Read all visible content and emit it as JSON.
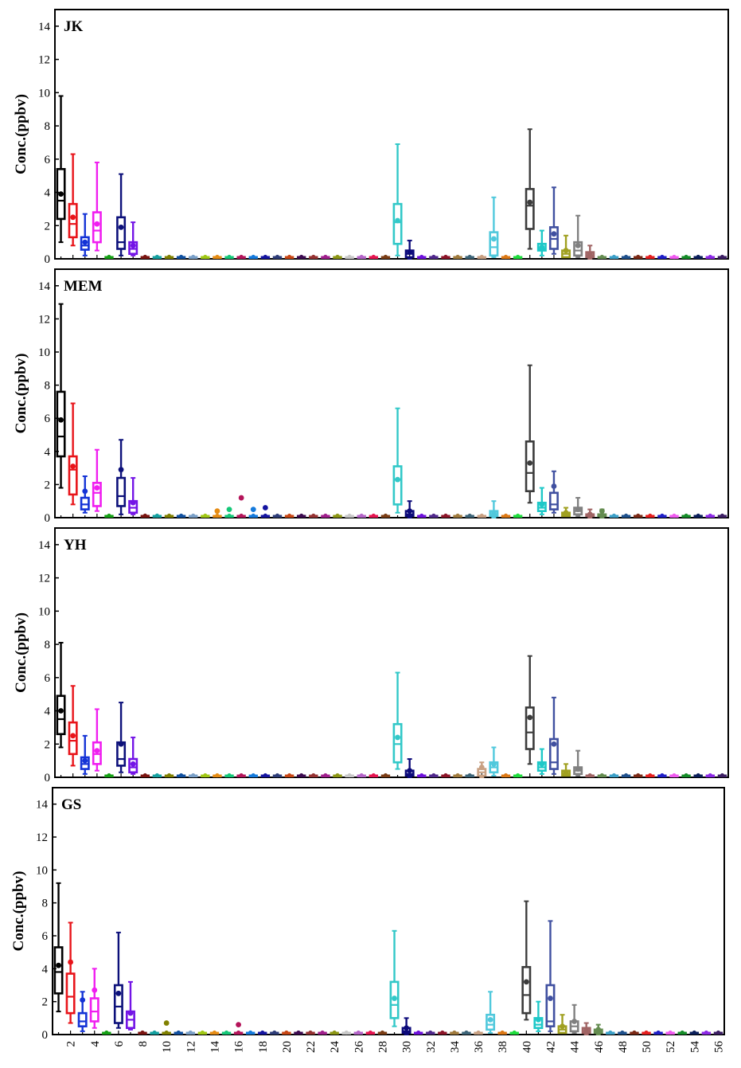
{
  "chart_data": {
    "type": "box",
    "ylabel": "Conc.(ppbv)",
    "ylim": [
      0,
      15
    ],
    "yticks": [
      0,
      2,
      4,
      6,
      8,
      10,
      12,
      14
    ],
    "xrange": [
      0.5,
      56.5
    ],
    "xticks": [
      "2",
      "4",
      "6",
      "8",
      "10",
      "12",
      "14",
      "16",
      "18",
      "20",
      "22",
      "24",
      "26",
      "28",
      "30",
      "32",
      "34",
      "36",
      "38",
      "40",
      "42",
      "44",
      "46",
      "48",
      "50",
      "52",
      "54",
      "56"
    ],
    "colors": [
      "#000000",
      "#e8141a",
      "#1433d6",
      "#f01ef0",
      "#14a014",
      "#0c107a",
      "#7314e6",
      "#7a1410",
      "#14a0a0",
      "#808000",
      "#1050a0",
      "#7aa0c8",
      "#a0c814",
      "#e68c14",
      "#14c878",
      "#b4145a",
      "#147adc",
      "#1414a0",
      "#2d3c78",
      "#c84614",
      "#3c0a50",
      "#963232",
      "#a01e8c",
      "#8c9614",
      "#c8c8c8",
      "#b464c8",
      "#e61450",
      "#7a3c14",
      "#32c8c8",
      "#0c0a7a",
      "#6e10dc",
      "#50288c",
      "#8c1428",
      "#a07a3c",
      "#3c6478",
      "#c8a082",
      "#50c8dc",
      "#dc7814",
      "#1edc3c",
      "#3c3c3c",
      "#1ec8c8",
      "#4050a0",
      "#a0a020",
      "#808080",
      "#a06464",
      "#648c50",
      "#3ca0c8",
      "#1e508c",
      "#7a2814",
      "#e61e1e",
      "#1e1ec8",
      "#f05af0",
      "#148c28",
      "#0a1e5a",
      "#8c28e6",
      "#3c1e64",
      "#a09614"
    ],
    "panels": [
      {
        "title": "JK",
        "boxes": [
          {
            "x": 1,
            "whisker_low": 1.0,
            "q1": 2.4,
            "median": 3.5,
            "q3": 5.4,
            "whisker_high": 9.8,
            "mean": 3.9
          },
          {
            "x": 2,
            "whisker_low": 0.8,
            "q1": 1.3,
            "median": 2.1,
            "q3": 3.3,
            "whisker_high": 6.3,
            "mean": 2.5
          },
          {
            "x": 3,
            "whisker_low": 0.2,
            "q1": 0.55,
            "median": 0.8,
            "q3": 1.3,
            "whisker_high": 2.7,
            "mean": 1.0
          },
          {
            "x": 4,
            "whisker_low": 0.5,
            "q1": 1.0,
            "median": 1.7,
            "q3": 2.8,
            "whisker_high": 5.8,
            "mean": 2.1
          },
          {
            "x": 6,
            "whisker_low": 0.2,
            "q1": 0.6,
            "median": 1.0,
            "q3": 2.5,
            "whisker_high": 5.1,
            "mean": 1.9
          },
          {
            "x": 7,
            "whisker_low": 0.2,
            "q1": 0.3,
            "median": 0.6,
            "q3": 1.0,
            "whisker_high": 2.2,
            "mean": 0.8
          },
          {
            "x": 29,
            "whisker_low": 0.2,
            "q1": 0.9,
            "median": 2.2,
            "q3": 3.3,
            "whisker_high": 6.9,
            "mean": 2.3
          },
          {
            "x": 30,
            "whisker_low": 0.0,
            "q1": 0.1,
            "median": 0.3,
            "q3": 0.5,
            "whisker_high": 1.1,
            "mean": 0.4
          },
          {
            "x": 37,
            "whisker_low": 0.1,
            "q1": 0.2,
            "median": 0.7,
            "q3": 1.6,
            "whisker_high": 3.7,
            "mean": 1.2
          },
          {
            "x": 40,
            "whisker_low": 0.6,
            "q1": 1.8,
            "median": 3.2,
            "q3": 4.2,
            "whisker_high": 7.8,
            "mean": 3.4
          },
          {
            "x": 41,
            "whisker_low": 0.2,
            "q1": 0.5,
            "median": 0.6,
            "q3": 0.9,
            "whisker_high": 1.7,
            "mean": 0.7
          },
          {
            "x": 42,
            "whisker_low": 0.3,
            "q1": 0.6,
            "median": 1.2,
            "q3": 1.9,
            "whisker_high": 4.3,
            "mean": 1.5
          },
          {
            "x": 43,
            "whisker_low": 0.1,
            "q1": 0.1,
            "median": 0.3,
            "q3": 0.5,
            "whisker_high": 1.4,
            "mean": 0.5
          },
          {
            "x": 44,
            "whisker_low": 0.1,
            "q1": 0.2,
            "median": 0.5,
            "q3": 1.0,
            "whisker_high": 2.6,
            "mean": 0.8
          },
          {
            "x": 45,
            "whisker_low": 0.0,
            "q1": 0.1,
            "median": 0.2,
            "q3": 0.4,
            "whisker_high": 0.8,
            "mean": 0.3
          }
        ]
      },
      {
        "title": "MEM",
        "boxes": [
          {
            "x": 1,
            "whisker_low": 1.8,
            "q1": 3.7,
            "median": 4.9,
            "q3": 7.6,
            "whisker_high": 12.9,
            "mean": 5.9
          },
          {
            "x": 2,
            "whisker_low": 0.8,
            "q1": 1.4,
            "median": 2.9,
            "q3": 3.7,
            "whisker_high": 6.9,
            "mean": 3.1
          },
          {
            "x": 3,
            "whisker_low": 0.3,
            "q1": 0.5,
            "median": 0.8,
            "q3": 1.2,
            "whisker_high": 2.5,
            "mean": 1.6
          },
          {
            "x": 4,
            "whisker_low": 0.4,
            "q1": 0.7,
            "median": 1.5,
            "q3": 2.1,
            "whisker_high": 4.1,
            "mean": 1.8
          },
          {
            "x": 6,
            "whisker_low": 0.2,
            "q1": 0.7,
            "median": 1.3,
            "q3": 2.4,
            "whisker_high": 4.7,
            "mean": 2.9
          },
          {
            "x": 7,
            "whisker_low": 0.2,
            "q1": 0.3,
            "median": 0.6,
            "q3": 1.0,
            "whisker_high": 2.4,
            "mean": 0.9
          },
          {
            "x": 29,
            "whisker_low": 0.3,
            "q1": 0.8,
            "median": 2.3,
            "q3": 3.1,
            "whisker_high": 6.6,
            "mean": 2.3
          },
          {
            "x": 30,
            "whisker_low": 0.0,
            "q1": 0.1,
            "median": 0.2,
            "q3": 0.4,
            "whisker_high": 1.0,
            "mean": 0.4
          },
          {
            "x": 37,
            "whisker_low": 0.0,
            "q1": 0.1,
            "median": 0.2,
            "q3": 0.4,
            "whisker_high": 1.0,
            "mean": 0.3
          },
          {
            "x": 40,
            "whisker_low": 0.9,
            "q1": 1.6,
            "median": 2.7,
            "q3": 4.6,
            "whisker_high": 9.2,
            "mean": 3.3
          },
          {
            "x": 41,
            "whisker_low": 0.2,
            "q1": 0.4,
            "median": 0.6,
            "q3": 0.9,
            "whisker_high": 1.8,
            "mean": 0.8
          },
          {
            "x": 42,
            "whisker_low": 0.3,
            "q1": 0.5,
            "median": 0.8,
            "q3": 1.5,
            "whisker_high": 2.8,
            "mean": 1.9
          },
          {
            "x": 43,
            "whisker_low": 0.1,
            "q1": 0.1,
            "median": 0.2,
            "q3": 0.3,
            "whisker_high": 0.6,
            "mean": 0.3
          },
          {
            "x": 44,
            "whisker_low": 0.1,
            "q1": 0.2,
            "median": 0.4,
            "q3": 0.6,
            "whisker_high": 1.2,
            "mean": 0.5
          },
          {
            "x": 45,
            "whisker_low": 0.0,
            "q1": 0.1,
            "median": 0.1,
            "q3": 0.2,
            "whisker_high": 0.5,
            "mean": 0.2
          },
          {
            "x": 46,
            "whisker_low": 0.0,
            "q1": 0.1,
            "median": 0.1,
            "q3": 0.2,
            "whisker_high": 0.5,
            "mean": 0.4
          }
        ],
        "extra_points": [
          {
            "x": 14,
            "y": 0.4
          },
          {
            "x": 15,
            "y": 0.5
          },
          {
            "x": 16,
            "y": 1.2
          },
          {
            "x": 17,
            "y": 0.5
          },
          {
            "x": 18,
            "y": 0.6
          }
        ]
      },
      {
        "title": "YH",
        "boxes": [
          {
            "x": 1,
            "whisker_low": 1.8,
            "q1": 2.6,
            "median": 3.5,
            "q3": 4.9,
            "whisker_high": 8.1,
            "mean": 4.0
          },
          {
            "x": 2,
            "whisker_low": 0.7,
            "q1": 1.4,
            "median": 2.2,
            "q3": 3.3,
            "whisker_high": 5.5,
            "mean": 2.5
          },
          {
            "x": 3,
            "whisker_low": 0.2,
            "q1": 0.5,
            "median": 0.8,
            "q3": 1.2,
            "whisker_high": 2.5,
            "mean": 1.0
          },
          {
            "x": 4,
            "whisker_low": 0.4,
            "q1": 0.8,
            "median": 1.4,
            "q3": 2.1,
            "whisker_high": 4.1,
            "mean": 1.6
          },
          {
            "x": 6,
            "whisker_low": 0.3,
            "q1": 0.7,
            "median": 1.1,
            "q3": 2.1,
            "whisker_high": 4.5,
            "mean": 2.0
          },
          {
            "x": 7,
            "whisker_low": 0.2,
            "q1": 0.3,
            "median": 0.6,
            "q3": 1.1,
            "whisker_high": 2.4,
            "mean": 0.8
          },
          {
            "x": 29,
            "whisker_low": 0.5,
            "q1": 0.9,
            "median": 2.0,
            "q3": 3.2,
            "whisker_high": 6.3,
            "mean": 2.4
          },
          {
            "x": 30,
            "whisker_low": 0.0,
            "q1": 0.1,
            "median": 0.2,
            "q3": 0.4,
            "whisker_high": 1.1,
            "mean": 0.4
          },
          {
            "x": 36,
            "whisker_low": 0.0,
            "q1": 0.1,
            "median": 0.3,
            "q3": 0.5,
            "whisker_high": 0.9,
            "mean": 0.6
          },
          {
            "x": 37,
            "whisker_low": 0.1,
            "q1": 0.3,
            "median": 0.6,
            "q3": 0.9,
            "whisker_high": 1.8,
            "mean": 0.8
          },
          {
            "x": 40,
            "whisker_low": 0.8,
            "q1": 1.7,
            "median": 2.7,
            "q3": 4.2,
            "whisker_high": 7.3,
            "mean": 3.6
          },
          {
            "x": 41,
            "whisker_low": 0.2,
            "q1": 0.4,
            "median": 0.6,
            "q3": 0.9,
            "whisker_high": 1.7,
            "mean": 0.8
          },
          {
            "x": 42,
            "whisker_low": 0.2,
            "q1": 0.5,
            "median": 0.9,
            "q3": 2.3,
            "whisker_high": 4.8,
            "mean": 2.0
          },
          {
            "x": 43,
            "whisker_low": 0.1,
            "q1": 0.1,
            "median": 0.2,
            "q3": 0.4,
            "whisker_high": 0.8,
            "mean": 0.3
          },
          {
            "x": 44,
            "whisker_low": 0.1,
            "q1": 0.2,
            "median": 0.4,
            "q3": 0.6,
            "whisker_high": 1.6,
            "mean": 0.5
          }
        ]
      },
      {
        "title": "GS",
        "boxes": [
          {
            "x": 1,
            "whisker_low": 1.4,
            "q1": 2.5,
            "median": 3.8,
            "q3": 5.3,
            "whisker_high": 9.2,
            "mean": 4.2
          },
          {
            "x": 2,
            "whisker_low": 0.7,
            "q1": 1.3,
            "median": 2.3,
            "q3": 3.7,
            "whisker_high": 6.8,
            "mean": 4.4
          },
          {
            "x": 3,
            "whisker_low": 0.2,
            "q1": 0.5,
            "median": 0.8,
            "q3": 1.3,
            "whisker_high": 2.6,
            "mean": 2.1
          },
          {
            "x": 4,
            "whisker_low": 0.4,
            "q1": 0.8,
            "median": 1.4,
            "q3": 2.2,
            "whisker_high": 4.0,
            "mean": 2.7
          },
          {
            "x": 6,
            "whisker_low": 0.4,
            "q1": 0.7,
            "median": 1.7,
            "q3": 3.0,
            "whisker_high": 6.2,
            "mean": 2.5
          },
          {
            "x": 7,
            "whisker_low": 0.3,
            "q1": 0.4,
            "median": 0.9,
            "q3": 1.4,
            "whisker_high": 3.2,
            "mean": 1.3
          },
          {
            "x": 29,
            "whisker_low": 0.5,
            "q1": 1.0,
            "median": 1.8,
            "q3": 3.2,
            "whisker_high": 6.3,
            "mean": 2.2
          },
          {
            "x": 30,
            "whisker_low": 0.0,
            "q1": 0.1,
            "median": 0.2,
            "q3": 0.4,
            "whisker_high": 1.0,
            "mean": 0.4
          },
          {
            "x": 37,
            "whisker_low": 0.1,
            "q1": 0.3,
            "median": 0.6,
            "q3": 1.2,
            "whisker_high": 2.6,
            "mean": 0.9
          },
          {
            "x": 40,
            "whisker_low": 0.9,
            "q1": 1.3,
            "median": 2.4,
            "q3": 4.1,
            "whisker_high": 8.1,
            "mean": 3.2
          },
          {
            "x": 41,
            "whisker_low": 0.2,
            "q1": 0.4,
            "median": 0.6,
            "q3": 1.0,
            "whisker_high": 2.0,
            "mean": 0.9
          },
          {
            "x": 42,
            "whisker_low": 0.2,
            "q1": 0.5,
            "median": 0.8,
            "q3": 3.0,
            "whisker_high": 6.9,
            "mean": 2.2
          },
          {
            "x": 43,
            "whisker_low": 0.1,
            "q1": 0.1,
            "median": 0.3,
            "q3": 0.5,
            "whisker_high": 1.2,
            "mean": 0.5
          },
          {
            "x": 44,
            "whisker_low": 0.1,
            "q1": 0.2,
            "median": 0.5,
            "q3": 0.8,
            "whisker_high": 1.8,
            "mean": 0.8
          },
          {
            "x": 45,
            "whisker_low": 0.0,
            "q1": 0.1,
            "median": 0.2,
            "q3": 0.4,
            "whisker_high": 0.7,
            "mean": 0.3
          },
          {
            "x": 46,
            "whisker_low": 0.0,
            "q1": 0.1,
            "median": 0.2,
            "q3": 0.3,
            "whisker_high": 0.6,
            "mean": 0.3
          }
        ],
        "extra_points": [
          {
            "x": 10,
            "y": 0.7
          },
          {
            "x": 16,
            "y": 0.6
          }
        ]
      }
    ]
  }
}
